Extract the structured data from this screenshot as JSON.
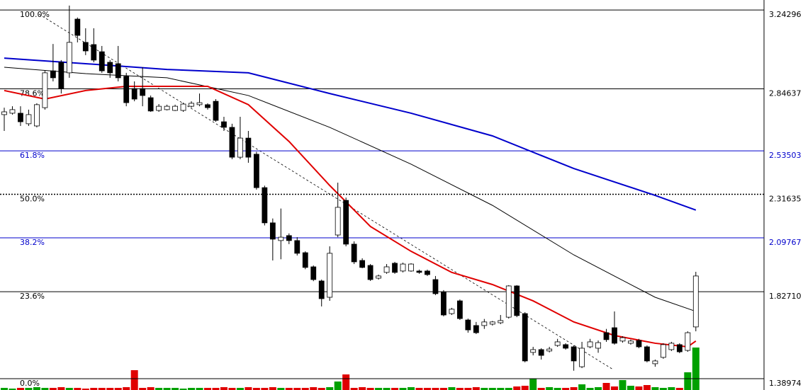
{
  "chart_data": {
    "type": "candlestick",
    "ylim": [
      1.333,
      3.293
    ],
    "up_color": "#ffffff",
    "down_color": "#000000",
    "volume_up_color": "#00a000",
    "volume_down_color": "#e00000",
    "levels": [
      {
        "name": "100.0%",
        "price": 3.24296,
        "color": "#000000",
        "style": "solid"
      },
      {
        "name": "78.6%",
        "price": 2.84637,
        "color": "#000000",
        "style": "solid"
      },
      {
        "name": "61.8%",
        "price": 2.53503,
        "color": "#0000cc",
        "style": "solid"
      },
      {
        "name": "50.0%",
        "price": 2.31635,
        "color": "#000000",
        "style": "dotted"
      },
      {
        "name": "38.2%",
        "price": 2.09767,
        "color": "#0000cc",
        "style": "solid"
      },
      {
        "name": "23.6%",
        "price": {
          "value": 1.8271,
          "label": "1.82710"
        },
        "color": "#000000",
        "style": "solid"
      },
      {
        "name": "0.0%",
        "price": 1.38974,
        "color": "#000000",
        "style": "solid"
      }
    ],
    "ohlc": [
      [
        2.717,
        2.752,
        2.635,
        2.731
      ],
      [
        2.724,
        2.759,
        2.717,
        2.742
      ],
      [
        2.724,
        2.759,
        2.66,
        2.681
      ],
      [
        2.671,
        2.742,
        2.66,
        2.717
      ],
      [
        2.66,
        2.774,
        2.653,
        2.767
      ],
      [
        2.752,
        2.937,
        2.742,
        2.927
      ],
      [
        2.937,
        3.072,
        2.884,
        2.902
      ],
      [
        2.98,
        2.991,
        2.823,
        2.848
      ],
      [
        2.927,
        3.265,
        2.902,
        3.08
      ],
      [
        3.197,
        3.205,
        3.08,
        3.115
      ],
      [
        3.08,
        3.151,
        3.016,
        3.037
      ],
      [
        3.069,
        3.151,
        2.98,
        2.991
      ],
      [
        3.033,
        3.062,
        2.927,
        2.937
      ],
      [
        2.98,
        2.991,
        2.902,
        2.927
      ],
      [
        2.973,
        3.062,
        2.884,
        2.902
      ],
      [
        2.909,
        2.927,
        2.759,
        2.777
      ],
      [
        2.848,
        2.884,
        2.784,
        2.795
      ],
      [
        2.848,
        2.955,
        2.759,
        2.813
      ],
      [
        2.802,
        2.813,
        2.731,
        2.735
      ],
      [
        2.738,
        2.77,
        2.731,
        2.759
      ],
      [
        2.742,
        2.767,
        2.738,
        2.759
      ],
      [
        2.738,
        2.767,
        2.735,
        2.759
      ],
      [
        2.738,
        2.777,
        2.731,
        2.77
      ],
      [
        2.759,
        2.784,
        2.752,
        2.774
      ],
      [
        2.767,
        2.823,
        2.759,
        2.777
      ],
      [
        2.767,
        2.774,
        2.742,
        2.752
      ],
      [
        2.784,
        2.795,
        2.681,
        2.688
      ],
      [
        2.681,
        2.706,
        2.635,
        2.653
      ],
      [
        2.653,
        2.671,
        2.493,
        2.503
      ],
      [
        2.503,
        2.706,
        2.493,
        2.599
      ],
      [
        2.599,
        2.635,
        2.475,
        2.503
      ],
      [
        2.518,
        2.53,
        2.34,
        2.35
      ],
      [
        2.35,
        2.36,
        2.16,
        2.173
      ],
      [
        2.173,
        2.195,
        1.984,
        2.091
      ],
      [
        2.084,
        2.245,
        1.99,
        2.101
      ],
      [
        2.109,
        2.12,
        2.066,
        2.084
      ],
      [
        2.084,
        2.101,
        2.009,
        2.02
      ],
      [
        2.023,
        2.03,
        1.94,
        1.949
      ],
      [
        1.952,
        1.959,
        1.88,
        1.888
      ],
      [
        1.881,
        1.888,
        1.753,
        1.792
      ],
      [
        1.799,
        2.055,
        1.781,
        2.02
      ],
      [
        2.112,
        2.375,
        2.101,
        2.251
      ],
      [
        2.286,
        2.3,
        2.055,
        2.066
      ],
      [
        2.066,
        2.08,
        1.966,
        1.977
      ],
      [
        1.984,
        1.995,
        1.945,
        1.949
      ],
      [
        1.959,
        1.966,
        1.881,
        1.888
      ],
      [
        1.895,
        1.913,
        1.888,
        1.906
      ],
      [
        1.924,
        1.966,
        1.917,
        1.952
      ],
      [
        1.97,
        1.977,
        1.917,
        1.924
      ],
      [
        1.931,
        1.973,
        1.924,
        1.966
      ],
      [
        1.931,
        1.97,
        1.927,
        1.966
      ],
      [
        1.931,
        1.938,
        1.917,
        1.924
      ],
      [
        1.931,
        1.938,
        1.906,
        1.913
      ],
      [
        1.888,
        1.906,
        1.81,
        1.817
      ],
      [
        1.824,
        1.835,
        1.703,
        1.71
      ],
      [
        1.717,
        1.746,
        1.71,
        1.739
      ],
      [
        1.781,
        1.788,
        1.685,
        1.692
      ],
      [
        1.685,
        1.692,
        1.621,
        1.635
      ],
      [
        1.657,
        1.675,
        1.614,
        1.621
      ],
      [
        1.657,
        1.69,
        1.64,
        1.675
      ],
      [
        1.664,
        1.68,
        1.657,
        1.675
      ],
      [
        1.671,
        1.71,
        1.664,
        1.682
      ],
      [
        1.699,
        1.86,
        1.692,
        1.856
      ],
      [
        1.856,
        1.86,
        1.699,
        1.707
      ],
      [
        1.717,
        1.724,
        1.472,
        1.479
      ],
      [
        1.522,
        1.55,
        1.507,
        1.536
      ],
      [
        1.536,
        1.543,
        1.486,
        1.507
      ],
      [
        1.529,
        1.55,
        1.522,
        1.539
      ],
      [
        1.557,
        1.59,
        1.55,
        1.575
      ],
      [
        1.561,
        1.568,
        1.536,
        1.543
      ],
      [
        1.55,
        1.557,
        1.43,
        1.479
      ],
      [
        1.45,
        1.575,
        1.443,
        1.543
      ],
      [
        1.55,
        1.59,
        1.543,
        1.575
      ],
      [
        1.543,
        1.582,
        1.52,
        1.571
      ],
      [
        1.621,
        1.64,
        1.575,
        1.586
      ],
      [
        1.646,
        1.728,
        1.561,
        1.568
      ],
      [
        1.579,
        1.603,
        1.571,
        1.596
      ],
      [
        1.568,
        1.586,
        1.561,
        1.579
      ],
      [
        1.582,
        1.59,
        1.543,
        1.55
      ],
      [
        1.55,
        1.557,
        1.472,
        1.479
      ],
      [
        1.465,
        1.486,
        1.45,
        1.479
      ],
      [
        1.497,
        1.568,
        1.49,
        1.561
      ],
      [
        1.536,
        1.575,
        1.529,
        1.568
      ],
      [
        1.561,
        1.568,
        1.518,
        1.525
      ],
      [
        1.532,
        1.628,
        1.525,
        1.621
      ],
      [
        1.65,
        1.927,
        1.628,
        1.906
      ]
    ],
    "volume": [
      3,
      2,
      3,
      3,
      4,
      3,
      3,
      4,
      3,
      3,
      2,
      3,
      3,
      3,
      3,
      4,
      28,
      3,
      4,
      3,
      3,
      3,
      2,
      3,
      3,
      3,
      3,
      4,
      3,
      3,
      4,
      3,
      3,
      4,
      3,
      3,
      3,
      3,
      4,
      3,
      4,
      12,
      22,
      3,
      4,
      3,
      3,
      3,
      3,
      3,
      4,
      3,
      3,
      3,
      3,
      4,
      3,
      3,
      4,
      3,
      3,
      3,
      3,
      5,
      6,
      16,
      3,
      4,
      3,
      3,
      4,
      8,
      3,
      4,
      10,
      5,
      14,
      6,
      5,
      7,
      4,
      3,
      4,
      3,
      25,
      60
    ],
    "lines": [
      {
        "color": "#0000cc",
        "width": 2,
        "x": [
          0,
          10,
          20,
          30,
          40,
          50,
          60,
          70,
          80,
          85
        ],
        "values": [
          3.001,
          2.973,
          2.944,
          2.927,
          2.823,
          2.724,
          2.61,
          2.446,
          2.311,
          2.237
        ]
      },
      {
        "color": "#000000",
        "width": 1,
        "x": [
          0,
          10,
          20,
          30,
          40,
          50,
          60,
          70,
          80,
          85
        ],
        "values": [
          2.955,
          2.923,
          2.902,
          2.813,
          2.653,
          2.468,
          2.261,
          2.012,
          1.799,
          1.728
        ]
      },
      {
        "color": "#e00000",
        "width": 2,
        "x": [
          0,
          5,
          10,
          15,
          20,
          25,
          30,
          35,
          40,
          45,
          50,
          55,
          60,
          65,
          70,
          75,
          80,
          84,
          85
        ],
        "values": [
          2.838,
          2.795,
          2.838,
          2.859,
          2.859,
          2.859,
          2.767,
          2.582,
          2.361,
          2.155,
          2.03,
          1.924,
          1.863,
          1.781,
          1.675,
          1.607,
          1.568,
          1.55,
          1.579
        ]
      }
    ]
  }
}
